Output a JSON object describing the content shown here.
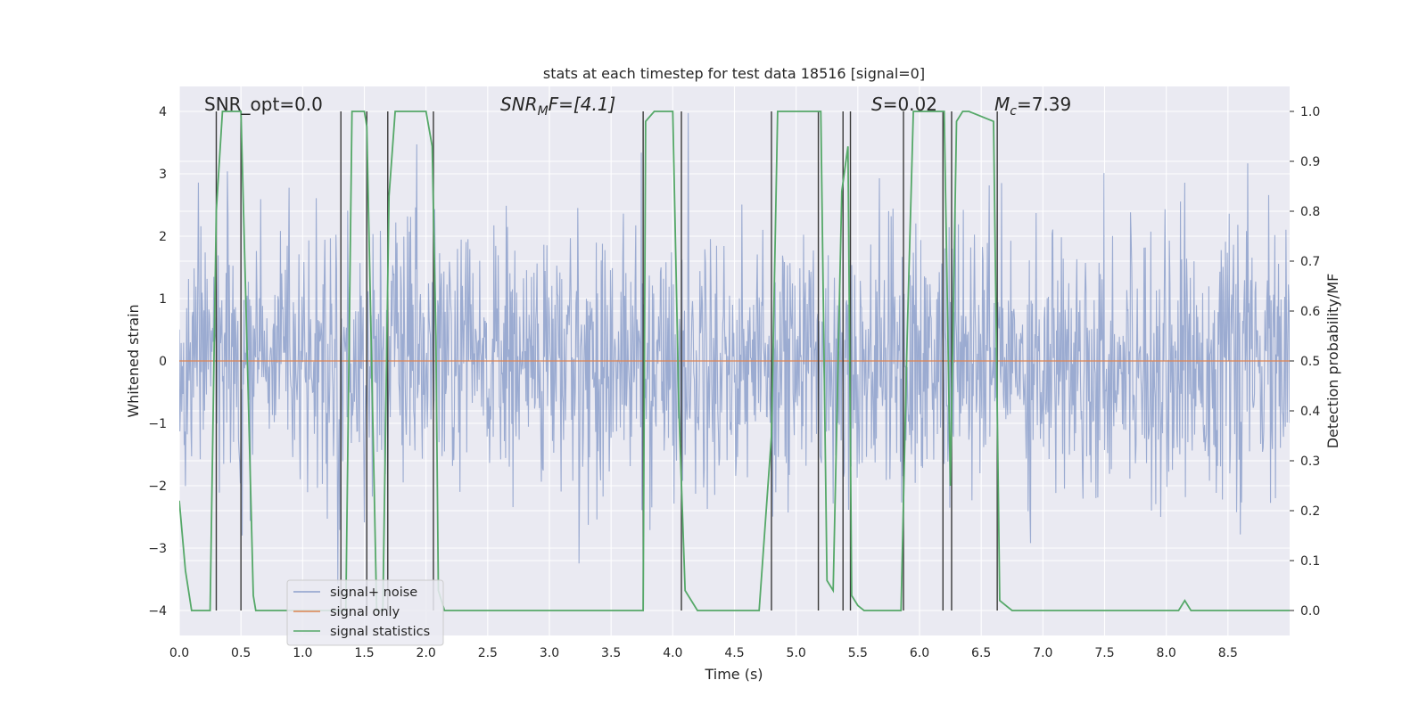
{
  "chart_data": {
    "type": "line",
    "title": "stats at each timestep for test data 18516 [signal=0]",
    "xlabel": "Time (s)",
    "ylabel": "Whitened strain",
    "y2label": "Detection probability/MF",
    "xlim": [
      0.0,
      9.0
    ],
    "ylim": [
      -4.4,
      4.4
    ],
    "y2lim": [
      -0.05,
      1.05
    ],
    "xticks": [
      "0.0",
      "0.5",
      "1.0",
      "1.5",
      "2.0",
      "2.5",
      "3.0",
      "3.5",
      "4.0",
      "4.5",
      "5.0",
      "5.5",
      "6.0",
      "6.5",
      "7.0",
      "7.5",
      "8.0",
      "8.5"
    ],
    "yticks": [
      "−4",
      "−3",
      "−2",
      "−1",
      "0",
      "1",
      "2",
      "3",
      "4"
    ],
    "y2ticks": [
      "0.0",
      "0.1",
      "0.2",
      "0.3",
      "0.4",
      "0.5",
      "0.6",
      "0.7",
      "0.8",
      "0.9",
      "1.0"
    ],
    "grid": true,
    "annotations": {
      "snr_opt": "SNR_opt=0.0",
      "snr_mf_base": "SNR",
      "snr_mf_sub": "M",
      "snr_mf_rest": "F=[4.1]",
      "s_sym": "S",
      "s_val": "=0.02",
      "mc_sym": "M",
      "mc_sub": "c",
      "mc_val": "=7.39"
    },
    "legend": {
      "position": "lower-left",
      "entries": [
        "signal+ noise",
        "signal only",
        "signal statistics"
      ]
    },
    "colors": {
      "signal_noise": "#8da0cb",
      "signal_only": "#dd8452",
      "signal_statistics": "#55a868",
      "event_lines": "#3a3a3a",
      "axes_bg": "#eaeaf2",
      "grid": "#ffffff"
    },
    "series": [
      {
        "name": "signal+ noise",
        "description": "whitened strain noise, approx. gaussian with sigma ~1, range roughly -3.7 to 4.0",
        "sigma": 1.05
      },
      {
        "name": "signal only",
        "x": [
          0.0,
          9.0
        ],
        "y": [
          0,
          0
        ]
      },
      {
        "name": "signal statistics",
        "axis": "right",
        "x": [
          0.0,
          0.05,
          0.1,
          0.25,
          0.3,
          0.35,
          0.4,
          0.5,
          0.55,
          0.6,
          0.62,
          0.7,
          1.3,
          1.35,
          1.4,
          1.5,
          1.52,
          1.6,
          1.65,
          1.7,
          1.75,
          1.8,
          2.0,
          2.05,
          2.08,
          2.1,
          2.15,
          2.2,
          3.0,
          3.4,
          3.5,
          3.76,
          3.78,
          3.85,
          4.0,
          4.05,
          4.1,
          4.2,
          4.3,
          4.7,
          4.8,
          4.85,
          4.9,
          5.0,
          5.2,
          5.25,
          5.3,
          5.37,
          5.42,
          5.45,
          5.5,
          5.55,
          5.7,
          5.85,
          5.9,
          5.95,
          6.0,
          6.2,
          6.25,
          6.3,
          6.35,
          6.4,
          6.6,
          6.65,
          6.7,
          6.75,
          6.85,
          7.0,
          8.0,
          8.1,
          8.15,
          8.2,
          8.5,
          9.0
        ],
        "y": [
          0.22,
          0.08,
          0.0,
          0.0,
          0.8,
          1.0,
          1.0,
          1.0,
          0.52,
          0.03,
          0.0,
          0.0,
          0.0,
          0.0,
          1.0,
          1.0,
          0.97,
          0.0,
          0.0,
          0.83,
          1.0,
          1.0,
          1.0,
          0.93,
          0.55,
          0.04,
          0.0,
          0.0,
          0.0,
          0.0,
          0.0,
          0.0,
          0.98,
          1.0,
          1.0,
          0.4,
          0.04,
          0.0,
          0.0,
          0.0,
          0.35,
          1.0,
          1.0,
          1.0,
          1.0,
          0.06,
          0.04,
          0.84,
          0.93,
          0.03,
          0.01,
          0.0,
          0.0,
          0.0,
          0.55,
          1.0,
          1.0,
          1.0,
          0.25,
          0.98,
          1.0,
          1.0,
          0.98,
          0.02,
          0.01,
          0.0,
          0.0,
          0.0,
          0.0,
          0.0,
          0.02,
          0.0,
          0.0,
          0.0
        ]
      }
    ],
    "event_markers_x": [
      0.3,
      0.5,
      1.31,
      1.52,
      1.69,
      2.06,
      3.76,
      4.07,
      4.8,
      5.18,
      5.38,
      5.44,
      5.87,
      6.19,
      6.26,
      6.63
    ]
  }
}
